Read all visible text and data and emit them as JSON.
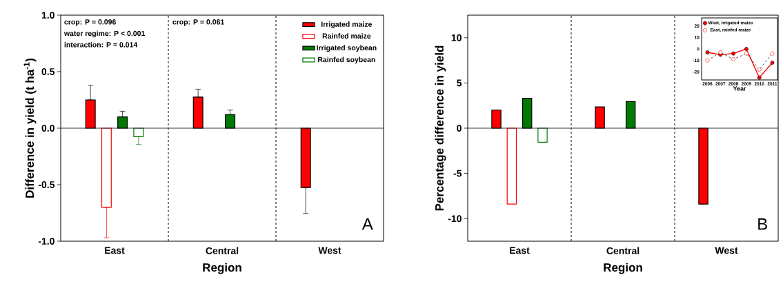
{
  "chart_data": [
    {
      "type": "bar",
      "categories": [
        "East",
        "Central",
        "West"
      ],
      "xlabel": "Region",
      "ylabel": "Difference in yield (t ha$^{-1}$)",
      "ylim": [
        -1,
        1
      ],
      "yticks": [
        {
          "value": -1,
          "label": "-1.0"
        },
        {
          "value": -0.5,
          "label": "-0.5"
        },
        {
          "value": 0,
          "label": "0.0"
        },
        {
          "value": 0.5,
          "label": "0.5"
        },
        {
          "value": 1,
          "label": "1.0"
        }
      ],
      "legend": "top right",
      "series": [
        {
          "name": "Irrigated maize",
          "color": "#ff0000",
          "values": [
            0.25,
            0.275,
            -0.525
          ],
          "errors": [
            [
              0.25,
              0.38
            ],
            [
              0.275,
              0.345
            ],
            [
              -0.755,
              -0.525
            ]
          ]
        },
        {
          "name": "Rainfed maize",
          "color": "#ff0000",
          "values": [
            -0.7,
            null,
            null
          ],
          "errors": [
            [
              -0.97,
              -0.7
            ],
            null,
            null
          ]
        },
        {
          "name": "Irrigated soybean",
          "color": "#007a00",
          "values": [
            0.1,
            0.12,
            null
          ],
          "errors": [
            [
              0.1,
              0.15
            ],
            [
              0.12,
              0.16
            ],
            null
          ]
        },
        {
          "name": "Rainfed soybean",
          "color": "#007a00",
          "values": [
            -0.075,
            null,
            null
          ],
          "errors": [
            [
              -0.145,
              -0.075
            ],
            null,
            null
          ]
        }
      ],
      "annotations": [
        "crop: P = 0.096",
        "water regime: P < 0.001",
        "interaction: P = 0.014",
        "crop: P = 0.061",
        "A"
      ]
    },
    {
      "type": "bar",
      "categories": [
        "East",
        "Central",
        "West"
      ],
      "xlabel": "Region",
      "ylabel": "Percentage difference in yield",
      "ylim": [
        -12.5,
        12.5
      ],
      "yticks": [
        -10,
        -5,
        0,
        5,
        10
      ],
      "series": [
        {
          "color": "#ff0000",
          "values": [
            2.0,
            2.35,
            -8.4
          ]
        },
        {
          "color": "#ff0000",
          "values": [
            -8.4,
            null,
            null
          ]
        },
        {
          "color": "#007a00",
          "values": [
            3.3,
            2.95,
            null
          ]
        },
        {
          "color": "#007a00",
          "values": [
            -1.55,
            null,
            null
          ]
        }
      ],
      "annotations": [
        "B"
      ]
    },
    {
      "type": "line",
      "x": [
        2006,
        2007,
        2008,
        2009,
        2010,
        2011
      ],
      "xlabel": "Year",
      "xlim": [
        2005.55,
        2011.4
      ],
      "xticks": [
        2006,
        2007,
        2008,
        2009,
        2010,
        2011
      ],
      "ylim": [
        -27,
        27
      ],
      "yticks": [
        -20,
        -10,
        0,
        10,
        20
      ],
      "legend": "top left",
      "marker": "circle",
      "series": [
        {
          "name": "West, irrigated maize",
          "color": "#ff0000",
          "line_style": "solid",
          "values": [
            -3,
            -5,
            -4,
            0,
            -25,
            -12
          ]
        },
        {
          "name": "East, rainfed maize",
          "color": "#ff0000",
          "line_style": "dashed",
          "values": [
            -10,
            -3,
            -9,
            -4,
            -18,
            -4
          ]
        }
      ]
    }
  ]
}
